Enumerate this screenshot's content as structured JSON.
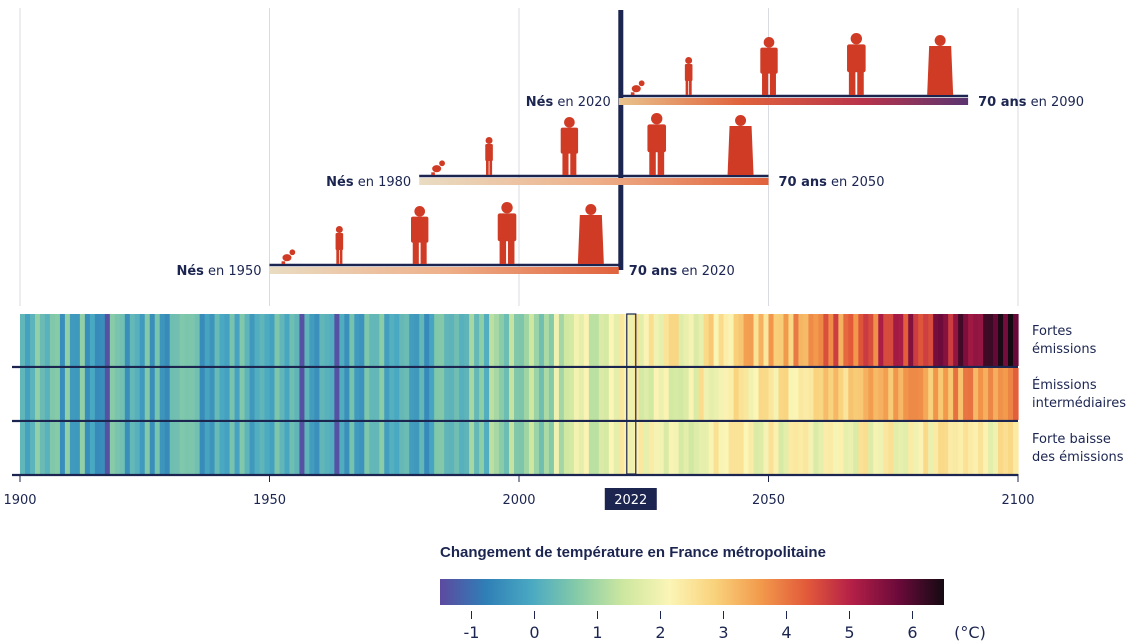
{
  "chart_data": {
    "type": "heatmap",
    "title": "",
    "x_axis": {
      "min": 1900,
      "max": 2100,
      "ticks": [
        "1900",
        "1950",
        "2000",
        "2050",
        "2100"
      ]
    },
    "highlight_year": "2022",
    "scenarios": [
      {
        "label": [
          "Fortes",
          "émissions"
        ],
        "end_warming": 6.5
      },
      {
        "label": [
          "Émissions",
          "intermédiaires"
        ],
        "end_warming": 4.0
      },
      {
        "label": [
          "Forte baisse",
          "des émissions"
        ],
        "end_warming": 2.2
      }
    ],
    "colorbar": {
      "title": "Changement de température en France métropolitaine",
      "min": -1.5,
      "max": 6.5,
      "ticks": [
        "-1",
        "0",
        "1",
        "2",
        "3",
        "4",
        "5",
        "6"
      ],
      "unit": "(°C)"
    },
    "cohorts": [
      {
        "born": 1950,
        "at70": 2020,
        "born_prefix": "Nés",
        "born_suffix": " en 1950",
        "at70_prefix": "70 ans",
        "at70_suffix": " en 2020"
      },
      {
        "born": 1980,
        "at70": 2050,
        "born_prefix": "Nés",
        "born_suffix": " en 1980",
        "at70_prefix": "70 ans",
        "at70_suffix": " en 2050"
      },
      {
        "born": 2020,
        "at70": 2090,
        "born_prefix": "Nés",
        "born_suffix": " en 2020",
        "at70_prefix": "70 ans",
        "at70_suffix": " en 2090"
      }
    ],
    "grid": true
  },
  "colors": {
    "navy": "#1b2550",
    "silhouette": "#cf3b25",
    "colormap": [
      "#5c4aa0",
      "#2f7fb6",
      "#4aa9c2",
      "#86cba8",
      "#cde7a0",
      "#fbf5b6",
      "#f9d27c",
      "#f29a4c",
      "#e25a3a",
      "#b31f47",
      "#6b0a3a",
      "#140a12"
    ]
  }
}
